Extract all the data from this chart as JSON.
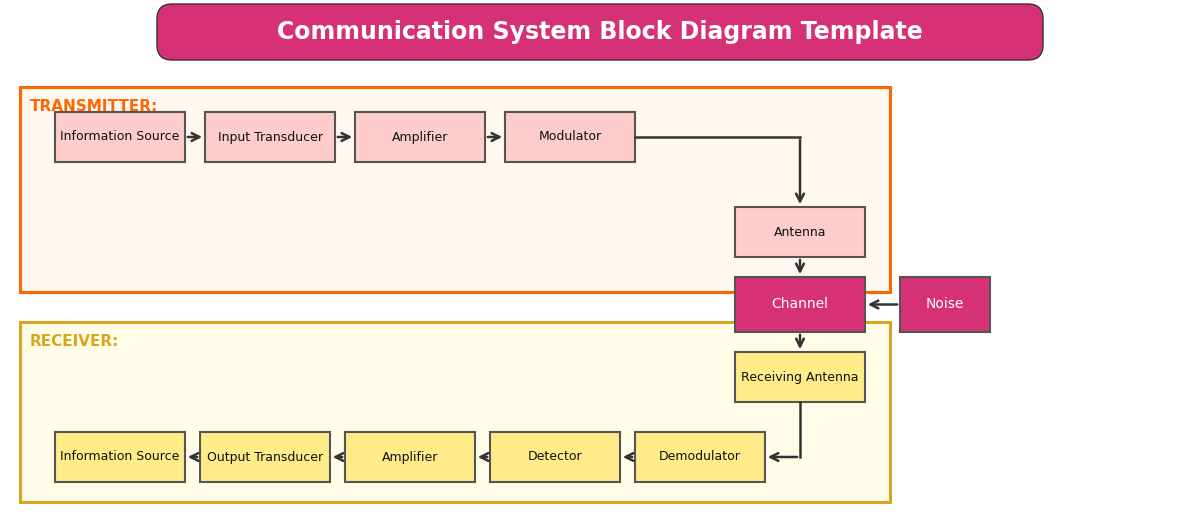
{
  "title": "Communication System Block Diagram Template",
  "title_bg": "#D63175",
  "title_fg": "#ffffff",
  "title_fontsize": 17,
  "bg_color": "#ffffff",
  "transmitter_label": "TRANSMITTER:",
  "transmitter_color": "#FF6600",
  "transmitter_bg": "#FFF8F0",
  "receiver_label": "RECEIVER:",
  "receiver_color": "#DAA520",
  "receiver_bg": "#FFFDE7",
  "tx_row_blocks": [
    {
      "label": "Information Source",
      "col": 0
    },
    {
      "label": "Input Transducer",
      "col": 1
    },
    {
      "label": "Amplifier",
      "col": 2
    },
    {
      "label": "Modulator",
      "col": 3
    }
  ],
  "rx_row_blocks": [
    {
      "label": "Demodulator",
      "col": 4
    },
    {
      "label": "Detector",
      "col": 3
    },
    {
      "label": "Amplifier",
      "col": 2
    },
    {
      "label": "Output Transducer",
      "col": 1
    },
    {
      "label": "Information Source",
      "col": 0
    }
  ],
  "tx_block_fc": "#FFCCCC",
  "tx_block_ec": "#555555",
  "rx_block_fc": "#FFEB88",
  "rx_block_ec": "#555555",
  "antenna_fc": "#FFCCCC",
  "antenna_ec": "#555555",
  "rx_antenna_fc": "#FFEB88",
  "rx_antenna_ec": "#555555",
  "channel_fc": "#D63175",
  "channel_ec": "#555555",
  "channel_fg": "#ffffff",
  "noise_fc": "#D63175",
  "noise_ec": "#555555",
  "noise_fg": "#ffffff",
  "arrow_color": "#333333",
  "arrow_lw": 1.8
}
